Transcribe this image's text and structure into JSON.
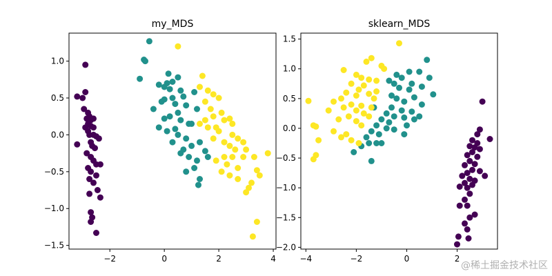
{
  "watermark": "@稀土掘金技术社区",
  "chart_data": [
    {
      "type": "scatter",
      "title": "my_MDS",
      "xlabel": "",
      "ylabel": "",
      "xlim": [
        -3.5,
        4.1
      ],
      "ylim": [
        -1.55,
        1.38
      ],
      "xticks": [
        -2,
        0,
        2,
        4
      ],
      "yticks": [
        -1.5,
        -1.0,
        -0.5,
        0.0,
        0.5,
        1.0
      ],
      "xtick_labels": [
        "−2",
        "0",
        "2",
        "4"
      ],
      "ytick_labels": [
        "−1.5",
        "−1.0",
        "−0.5",
        "0.0",
        "0.5",
        "1.0"
      ],
      "grid": false,
      "colors": {
        "class0": "#440154",
        "class1": "#21918c",
        "class2": "#fde725"
      },
      "series": [
        {
          "color": "#440154",
          "points": [
            [
              -2.9,
              0.95
            ],
            [
              -3.2,
              0.52
            ],
            [
              -3.0,
              0.5
            ],
            [
              -2.9,
              0.58
            ],
            [
              -2.95,
              0.35
            ],
            [
              -2.8,
              0.3
            ],
            [
              -2.85,
              0.22
            ],
            [
              -2.75,
              0.25
            ],
            [
              -2.7,
              0.2
            ],
            [
              -2.6,
              0.22
            ],
            [
              -2.8,
              0.15
            ],
            [
              -2.7,
              0.12
            ],
            [
              -2.6,
              0.1
            ],
            [
              -2.9,
              0.1
            ],
            [
              -2.8,
              0.05
            ],
            [
              -2.75,
              0.0
            ],
            [
              -2.6,
              0.0
            ],
            [
              -2.5,
              -0.02
            ],
            [
              -2.4,
              -0.05
            ],
            [
              -2.7,
              -0.1
            ],
            [
              -2.65,
              -0.15
            ],
            [
              -2.55,
              -0.18
            ],
            [
              -2.85,
              -0.25
            ],
            [
              -2.7,
              -0.3
            ],
            [
              -2.6,
              -0.35
            ],
            [
              -2.5,
              -0.4
            ],
            [
              -2.35,
              -0.4
            ],
            [
              -2.8,
              -0.45
            ],
            [
              -2.7,
              -0.5
            ],
            [
              -2.5,
              -0.55
            ],
            [
              -2.75,
              -0.6
            ],
            [
              -2.6,
              -0.65
            ],
            [
              -2.45,
              -0.75
            ],
            [
              -2.35,
              -0.85
            ],
            [
              -2.75,
              -0.8
            ],
            [
              -2.7,
              -1.05
            ],
            [
              -2.65,
              -1.12
            ],
            [
              -2.7,
              -1.18
            ],
            [
              -2.5,
              -1.33
            ],
            [
              -3.2,
              -0.13
            ]
          ]
        },
        {
          "color": "#21918c",
          "points": [
            [
              -0.55,
              1.27
            ],
            [
              -0.75,
              1.02
            ],
            [
              -0.7,
              1.0
            ],
            [
              -0.9,
              0.76
            ],
            [
              0.15,
              0.83
            ],
            [
              0.5,
              0.78
            ],
            [
              0.3,
              0.72
            ],
            [
              0.1,
              0.7
            ],
            [
              -0.2,
              0.68
            ],
            [
              0.0,
              0.65
            ],
            [
              0.2,
              0.62
            ],
            [
              0.6,
              0.6
            ],
            [
              1.1,
              0.58
            ],
            [
              0.7,
              0.52
            ],
            [
              0.3,
              0.5
            ],
            [
              0.0,
              0.48
            ],
            [
              -0.1,
              0.45
            ],
            [
              0.4,
              0.42
            ],
            [
              0.8,
              0.4
            ],
            [
              1.2,
              0.35
            ],
            [
              0.5,
              0.3
            ],
            [
              0.2,
              0.25
            ],
            [
              0.0,
              0.22
            ],
            [
              0.6,
              0.2
            ],
            [
              0.9,
              0.15
            ],
            [
              -0.4,
              0.35
            ],
            [
              -0.2,
              0.1
            ],
            [
              0.1,
              0.05
            ],
            [
              0.5,
              0.0
            ],
            [
              0.8,
              -0.05
            ],
            [
              0.3,
              -0.1
            ],
            [
              1.3,
              -0.1
            ],
            [
              1.0,
              -0.15
            ],
            [
              0.7,
              -0.2
            ],
            [
              1.5,
              -0.22
            ],
            [
              0.9,
              -0.3
            ],
            [
              1.2,
              -0.35
            ],
            [
              1.6,
              -0.3
            ],
            [
              1.1,
              -0.45
            ],
            [
              0.8,
              -0.5
            ],
            [
              1.3,
              -0.6
            ],
            [
              1.25,
              -0.68
            ],
            [
              0.6,
              -0.25
            ],
            [
              0.4,
              0.08
            ],
            [
              1.0,
              0.15
            ]
          ]
        },
        {
          "color": "#fde725",
          "points": [
            [
              0.5,
              1.2
            ],
            [
              1.4,
              0.8
            ],
            [
              1.3,
              0.65
            ],
            [
              1.6,
              0.6
            ],
            [
              1.8,
              0.55
            ],
            [
              2.0,
              0.5
            ],
            [
              1.5,
              0.45
            ],
            [
              1.7,
              0.35
            ],
            [
              2.1,
              0.3
            ],
            [
              1.8,
              0.25
            ],
            [
              2.2,
              0.2
            ],
            [
              2.4,
              0.22
            ],
            [
              2.5,
              0.15
            ],
            [
              1.5,
              0.2
            ],
            [
              1.3,
              0.15
            ],
            [
              1.6,
              0.1
            ],
            [
              2.0,
              0.05
            ],
            [
              1.8,
              -0.05
            ],
            [
              2.5,
              0.0
            ],
            [
              2.7,
              -0.05
            ],
            [
              2.2,
              -0.1
            ],
            [
              2.4,
              -0.15
            ],
            [
              2.6,
              -0.2
            ],
            [
              3.0,
              -0.2
            ],
            [
              2.9,
              -0.3
            ],
            [
              3.3,
              -0.3
            ],
            [
              3.8,
              -0.25
            ],
            [
              2.5,
              -0.3
            ],
            [
              2.2,
              -0.3
            ],
            [
              1.9,
              -0.35
            ],
            [
              2.3,
              -0.4
            ],
            [
              2.7,
              -0.45
            ],
            [
              2.1,
              -0.5
            ],
            [
              2.4,
              -0.55
            ],
            [
              3.4,
              -0.48
            ],
            [
              3.5,
              -0.55
            ],
            [
              2.7,
              -0.6
            ],
            [
              3.2,
              -0.65
            ],
            [
              3.1,
              -0.72
            ],
            [
              3.0,
              -0.78
            ],
            [
              3.4,
              -1.18
            ],
            [
              3.25,
              -1.38
            ],
            [
              1.9,
              0.1
            ],
            [
              2.9,
              -0.1
            ]
          ]
        }
      ]
    },
    {
      "type": "scatter",
      "title": "sklearn_MDS",
      "xlabel": "",
      "ylabel": "",
      "xlim": [
        -4.2,
        3.6
      ],
      "ylim": [
        -2.03,
        1.6
      ],
      "xticks": [
        -4,
        -2,
        0,
        2
      ],
      "yticks": [
        -2.0,
        -1.5,
        -1.0,
        -0.5,
        0.0,
        0.5,
        1.0,
        1.5
      ],
      "xtick_labels": [
        "−4",
        "−2",
        "0",
        "2"
      ],
      "ytick_labels": [
        "−2.0",
        "−1.5",
        "−1.0",
        "−0.5",
        "0.0",
        "0.5",
        "1.0",
        "1.5"
      ],
      "grid": false,
      "colors": {
        "class0": "#440154",
        "class1": "#21918c",
        "class2": "#fde725"
      },
      "series": [
        {
          "color": "#440154",
          "points": [
            [
              3.0,
              0.45
            ],
            [
              2.9,
              -0.02
            ],
            [
              3.3,
              -0.18
            ],
            [
              2.6,
              -0.2
            ],
            [
              2.8,
              -0.25
            ],
            [
              2.5,
              -0.3
            ],
            [
              2.7,
              -0.32
            ],
            [
              2.9,
              -0.35
            ],
            [
              2.6,
              -0.4
            ],
            [
              2.4,
              -0.45
            ],
            [
              2.8,
              -0.48
            ],
            [
              2.5,
              -0.55
            ],
            [
              2.7,
              -0.6
            ],
            [
              2.3,
              -0.62
            ],
            [
              2.6,
              -0.7
            ],
            [
              2.9,
              -0.72
            ],
            [
              2.4,
              -0.75
            ],
            [
              2.2,
              -0.8
            ],
            [
              2.5,
              -0.85
            ],
            [
              2.7,
              -0.88
            ],
            [
              2.3,
              -0.92
            ],
            [
              2.6,
              -0.95
            ],
            [
              2.4,
              -1.0
            ],
            [
              2.1,
              -0.98
            ],
            [
              2.5,
              -1.1
            ],
            [
              2.3,
              -1.2
            ],
            [
              2.1,
              -1.3
            ],
            [
              2.4,
              -1.3
            ],
            [
              2.7,
              -1.45
            ],
            [
              2.5,
              -1.5
            ],
            [
              2.3,
              -1.6
            ],
            [
              2.4,
              -1.7
            ],
            [
              2.05,
              -1.82
            ],
            [
              2.45,
              -1.85
            ],
            [
              2.0,
              -1.95
            ],
            [
              3.1,
              -0.8
            ],
            [
              2.8,
              -0.1
            ]
          ]
        },
        {
          "color": "#21918c",
          "points": [
            [
              0.8,
              1.15
            ],
            [
              0.5,
              0.95
            ],
            [
              0.1,
              0.95
            ],
            [
              -0.4,
              0.9
            ],
            [
              -0.2,
              0.85
            ],
            [
              0.9,
              0.85
            ],
            [
              -0.7,
              0.8
            ],
            [
              -0.5,
              0.75
            ],
            [
              0.2,
              0.75
            ],
            [
              0.6,
              0.7
            ],
            [
              -0.3,
              0.68
            ],
            [
              0.1,
              0.65
            ],
            [
              1.05,
              0.57
            ],
            [
              -0.6,
              0.55
            ],
            [
              -0.4,
              0.5
            ],
            [
              0.3,
              0.52
            ],
            [
              -0.1,
              0.45
            ],
            [
              0.6,
              0.4
            ],
            [
              -0.6,
              0.35
            ],
            [
              -0.2,
              0.3
            ],
            [
              0.2,
              0.28
            ],
            [
              -0.8,
              0.25
            ],
            [
              -0.5,
              0.2
            ],
            [
              -0.1,
              0.18
            ],
            [
              0.3,
              0.15
            ],
            [
              -1.0,
              0.15
            ],
            [
              -0.7,
              0.1
            ],
            [
              0.0,
              0.05
            ],
            [
              -1.2,
              0.05
            ],
            [
              -0.8,
              0.0
            ],
            [
              -0.5,
              -0.02
            ],
            [
              -1.4,
              -0.05
            ],
            [
              -1.1,
              -0.1
            ],
            [
              -1.6,
              -0.15
            ],
            [
              -1.5,
              -0.25
            ],
            [
              -1.2,
              -0.25
            ],
            [
              -1.8,
              -0.3
            ],
            [
              -2.1,
              -0.4
            ],
            [
              -1.4,
              -0.55
            ],
            [
              -0.1,
              -0.1
            ],
            [
              -1.3,
              0.35
            ],
            [
              0.5,
              0.2
            ],
            [
              -1.0,
              -0.25
            ]
          ]
        },
        {
          "color": "#fde725",
          "points": [
            [
              -0.3,
              1.43
            ],
            [
              -1.4,
              1.18
            ],
            [
              -1.6,
              1.12
            ],
            [
              -1.0,
              1.05
            ],
            [
              -0.9,
              1.0
            ],
            [
              -2.5,
              0.98
            ],
            [
              -2.0,
              0.9
            ],
            [
              -1.8,
              0.85
            ],
            [
              -1.5,
              0.82
            ],
            [
              -1.2,
              0.8
            ],
            [
              -2.2,
              0.75
            ],
            [
              -1.7,
              0.72
            ],
            [
              -1.9,
              0.65
            ],
            [
              -2.4,
              0.6
            ],
            [
              -1.5,
              0.58
            ],
            [
              -2.0,
              0.55
            ],
            [
              -2.6,
              0.5
            ],
            [
              -1.3,
              0.5
            ],
            [
              -2.9,
              0.45
            ],
            [
              -3.9,
              0.46
            ],
            [
              -2.2,
              0.4
            ],
            [
              -1.8,
              0.38
            ],
            [
              -2.5,
              0.35
            ],
            [
              -1.4,
              0.35
            ],
            [
              -2.0,
              0.3
            ],
            [
              -1.7,
              0.25
            ],
            [
              -3.1,
              0.3
            ],
            [
              -2.3,
              0.2
            ],
            [
              -1.5,
              0.2
            ],
            [
              -2.7,
              0.15
            ],
            [
              -2.0,
              0.12
            ],
            [
              -1.8,
              0.05
            ],
            [
              -3.7,
              0.05
            ],
            [
              -3.6,
              0.03
            ],
            [
              -2.9,
              -0.05
            ],
            [
              -2.4,
              -0.1
            ],
            [
              -2.6,
              -0.15
            ],
            [
              -2.2,
              -0.2
            ],
            [
              -1.9,
              -0.25
            ],
            [
              -3.5,
              -0.2
            ],
            [
              -3.6,
              -0.45
            ],
            [
              -3.7,
              -0.52
            ],
            [
              -1.2,
              0.62
            ]
          ]
        }
      ]
    }
  ]
}
